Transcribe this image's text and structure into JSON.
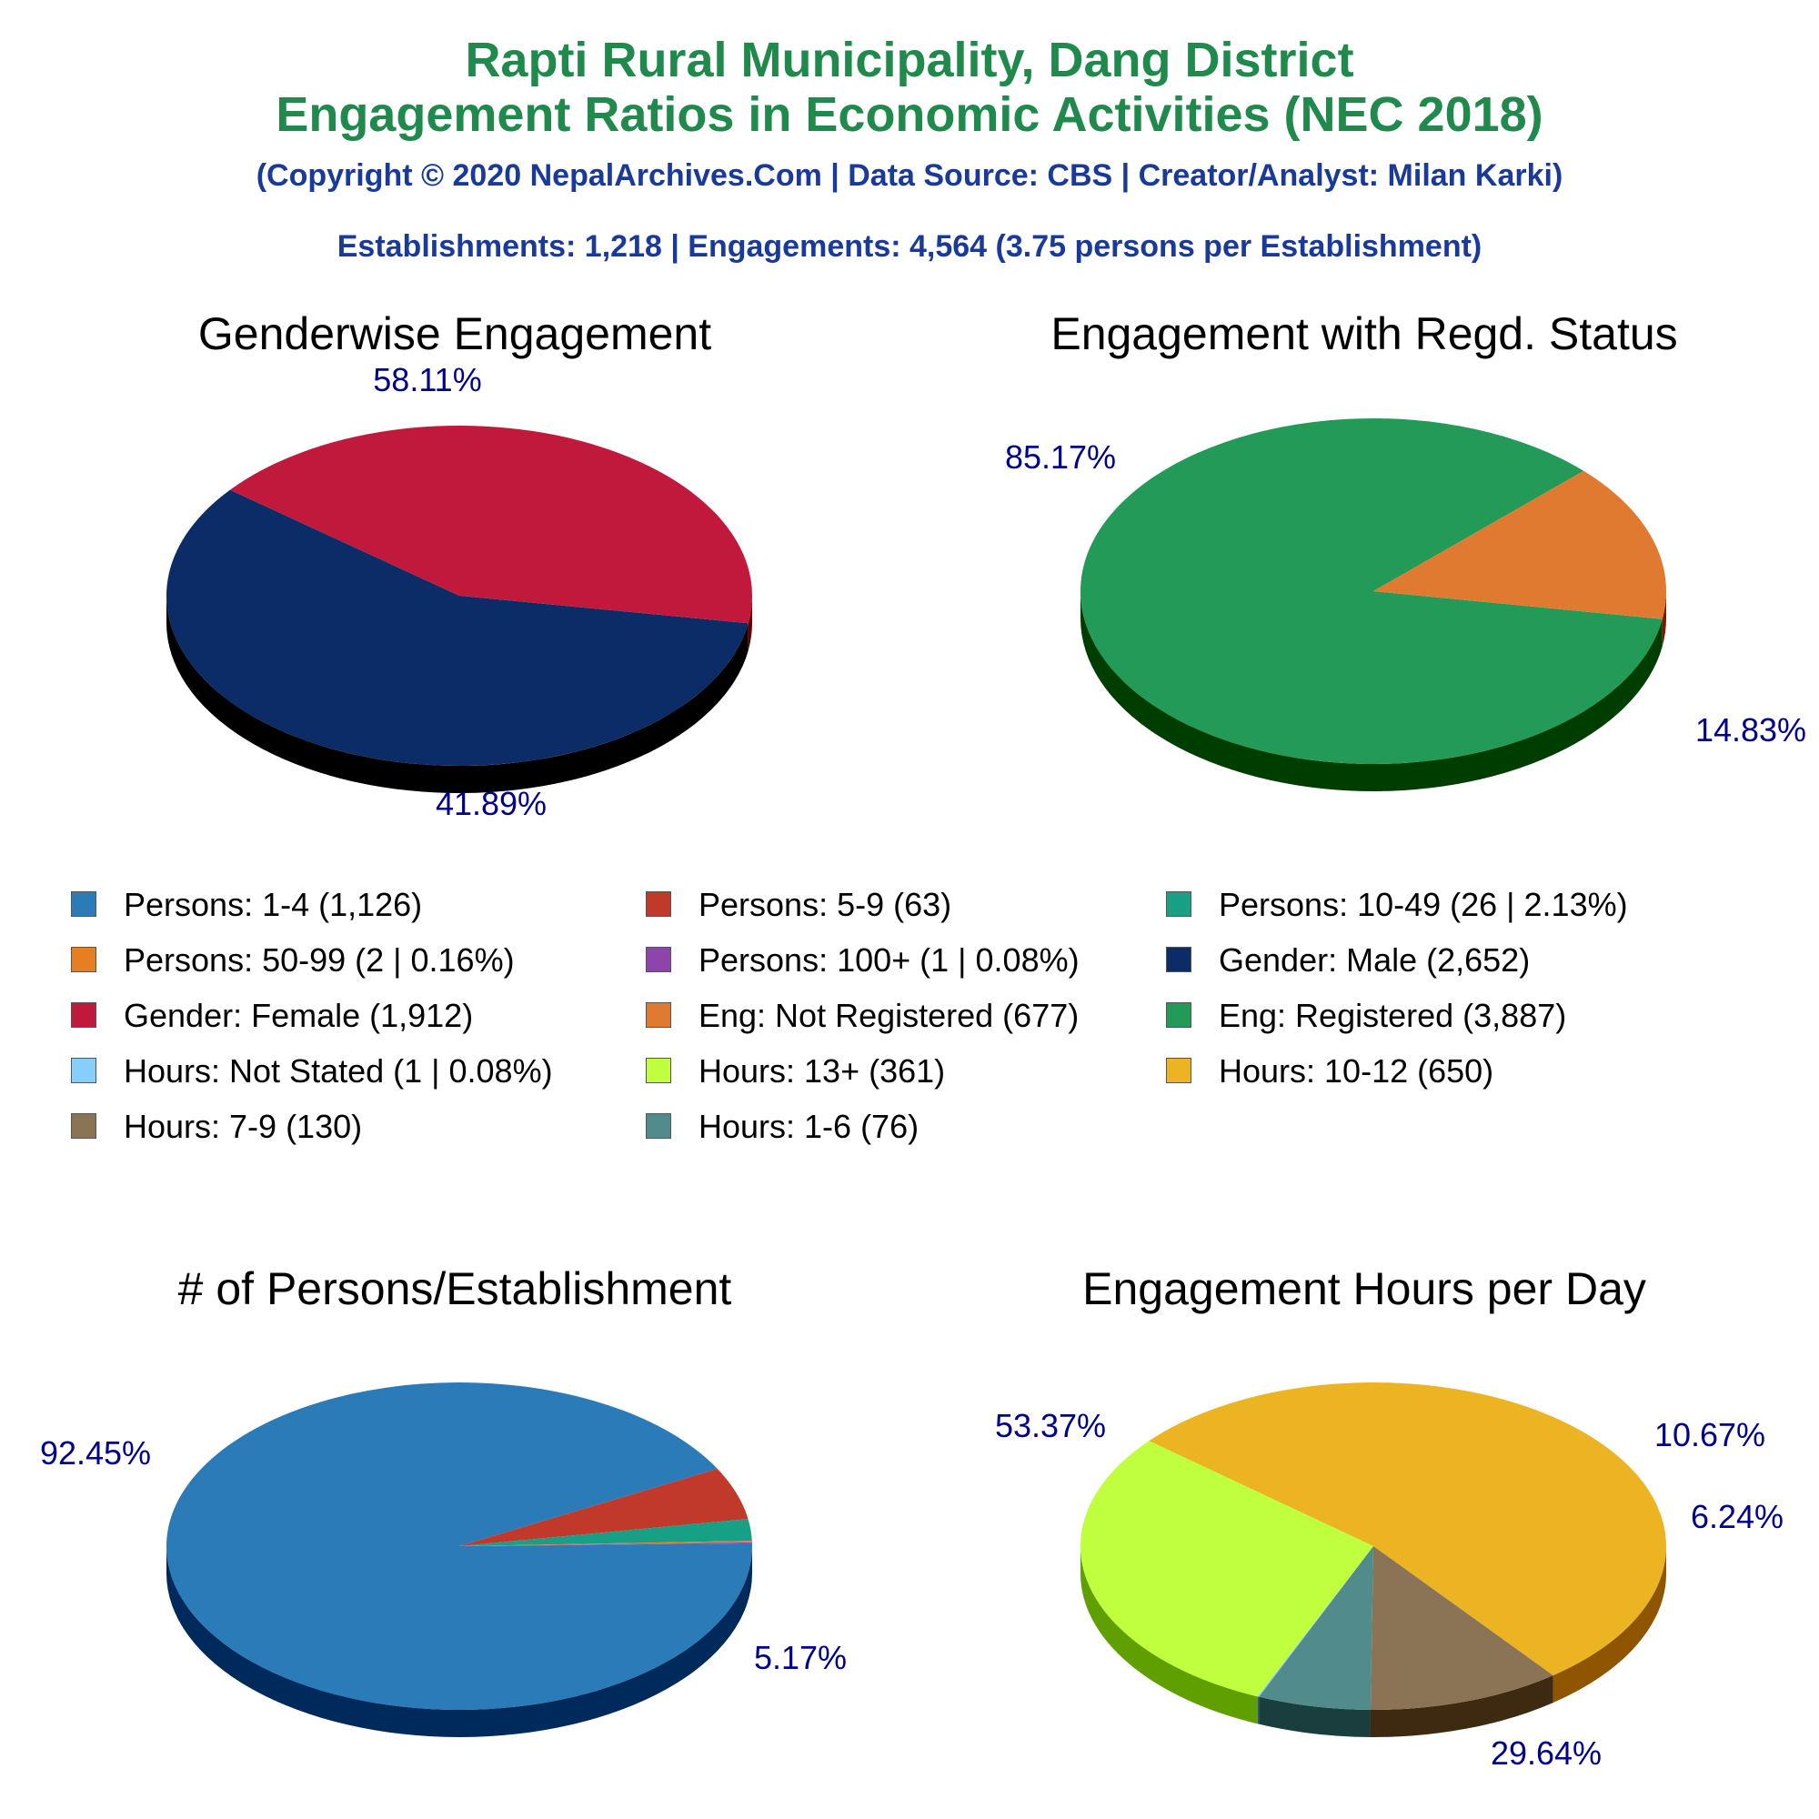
{
  "header": {
    "title_line1": "Rapti Rural Municipality, Dang District",
    "title_line2": "Engagement Ratios in Economic Activities (NEC 2018)",
    "copyright": "(Copyright © 2020 NepalArchives.Com | Data Source: CBS | Creator/Analyst: Milan Karki)",
    "summary": "Establishments: 1,218 | Engagements: 4,564 (3.75 persons per Establishment)"
  },
  "legend": {
    "items": [
      {
        "label": "Persons: 1-4 (1,126)",
        "color": "#2b7bb9"
      },
      {
        "label": "Persons: 5-9 (63)",
        "color": "#c0392b"
      },
      {
        "label": "Persons: 10-49 (26 | 2.13%)",
        "color": "#17a085"
      },
      {
        "label": "Persons: 50-99 (2 | 0.16%)",
        "color": "#e67e22"
      },
      {
        "label": "Persons: 100+ (1 | 0.08%)",
        "color": "#8e44ad"
      },
      {
        "label": "Gender: Male (2,652)",
        "color": "#0b2c66"
      },
      {
        "label": "Gender: Female (1,912)",
        "color": "#c0193c"
      },
      {
        "label": "Eng: Not Registered (677)",
        "color": "#e07a30"
      },
      {
        "label": "Eng: Registered (3,887)",
        "color": "#239a57"
      },
      {
        "label": "Hours: Not Stated (1 | 0.08%)",
        "color": "#87cefa"
      },
      {
        "label": "Hours: 13+ (361)",
        "color": "#c0ff3e"
      },
      {
        "label": "Hours: 10-12 (650)",
        "color": "#ecb322"
      },
      {
        "label": "Hours: 7-9 (130)",
        "color": "#8b7355"
      },
      {
        "label": "Hours: 1-6 (76)",
        "color": "#528b8b"
      }
    ]
  },
  "chart_data": [
    {
      "type": "pie",
      "title": "Genderwise Engagement",
      "slices": [
        {
          "name": "Gender: Male",
          "value": 2652,
          "percent": 58.11,
          "color": "#0b2c66",
          "side": "#000000",
          "label": "58.11%"
        },
        {
          "name": "Gender: Female",
          "value": 1912,
          "percent": 41.89,
          "color": "#c0193c",
          "side": "#660000",
          "label": "41.89%"
        }
      ]
    },
    {
      "type": "pie",
      "title": "Engagement with Regd. Status",
      "slices": [
        {
          "name": "Eng: Registered",
          "value": 3887,
          "percent": 85.17,
          "color": "#239a57",
          "side": "#003d00",
          "label": "85.17%"
        },
        {
          "name": "Eng: Not Registered",
          "value": 677,
          "percent": 14.83,
          "color": "#e07a30",
          "side": "#7a1a00",
          "label": "14.83%"
        }
      ]
    },
    {
      "type": "pie",
      "title": "# of Persons/Establishment",
      "slices": [
        {
          "name": "Persons: 1-4",
          "value": 1126,
          "percent": 92.45,
          "color": "#2b7bb9",
          "side": "#002a5c",
          "label": "92.45%"
        },
        {
          "name": "Persons: 5-9",
          "value": 63,
          "percent": 5.17,
          "color": "#c0392b",
          "side": "#660000",
          "label": "5.17%"
        },
        {
          "name": "Persons: 10-49",
          "value": 26,
          "percent": 2.13,
          "color": "#17a085",
          "side": "#003d30",
          "label": ""
        },
        {
          "name": "Persons: 50-99",
          "value": 2,
          "percent": 0.16,
          "color": "#e67e22",
          "side": "#7a3500",
          "label": ""
        },
        {
          "name": "Persons: 100+",
          "value": 1,
          "percent": 0.08,
          "color": "#8e44ad",
          "side": "#3a0050",
          "label": ""
        }
      ]
    },
    {
      "type": "pie",
      "title": "Engagement Hours per Day",
      "slices": [
        {
          "name": "Hours: 10-12",
          "value": 650,
          "percent": 53.37,
          "color": "#ecb322",
          "side": "#8f5500",
          "label": "53.37%"
        },
        {
          "name": "Hours: 7-9",
          "value": 130,
          "percent": 10.67,
          "color": "#8b7355",
          "side": "#3d2a10",
          "label": "10.67%"
        },
        {
          "name": "Hours: 1-6",
          "value": 76,
          "percent": 6.24,
          "color": "#528b8b",
          "side": "#1a3d3d",
          "label": "6.24%"
        },
        {
          "name": "Hours: Not Stated",
          "value": 1,
          "percent": 0.08,
          "color": "#87cefa",
          "side": "#2a5a80",
          "label": ""
        },
        {
          "name": "Hours: 13+",
          "value": 361,
          "percent": 29.64,
          "color": "#c0ff3e",
          "side": "#5fa000",
          "label": "29.64%"
        }
      ]
    }
  ]
}
